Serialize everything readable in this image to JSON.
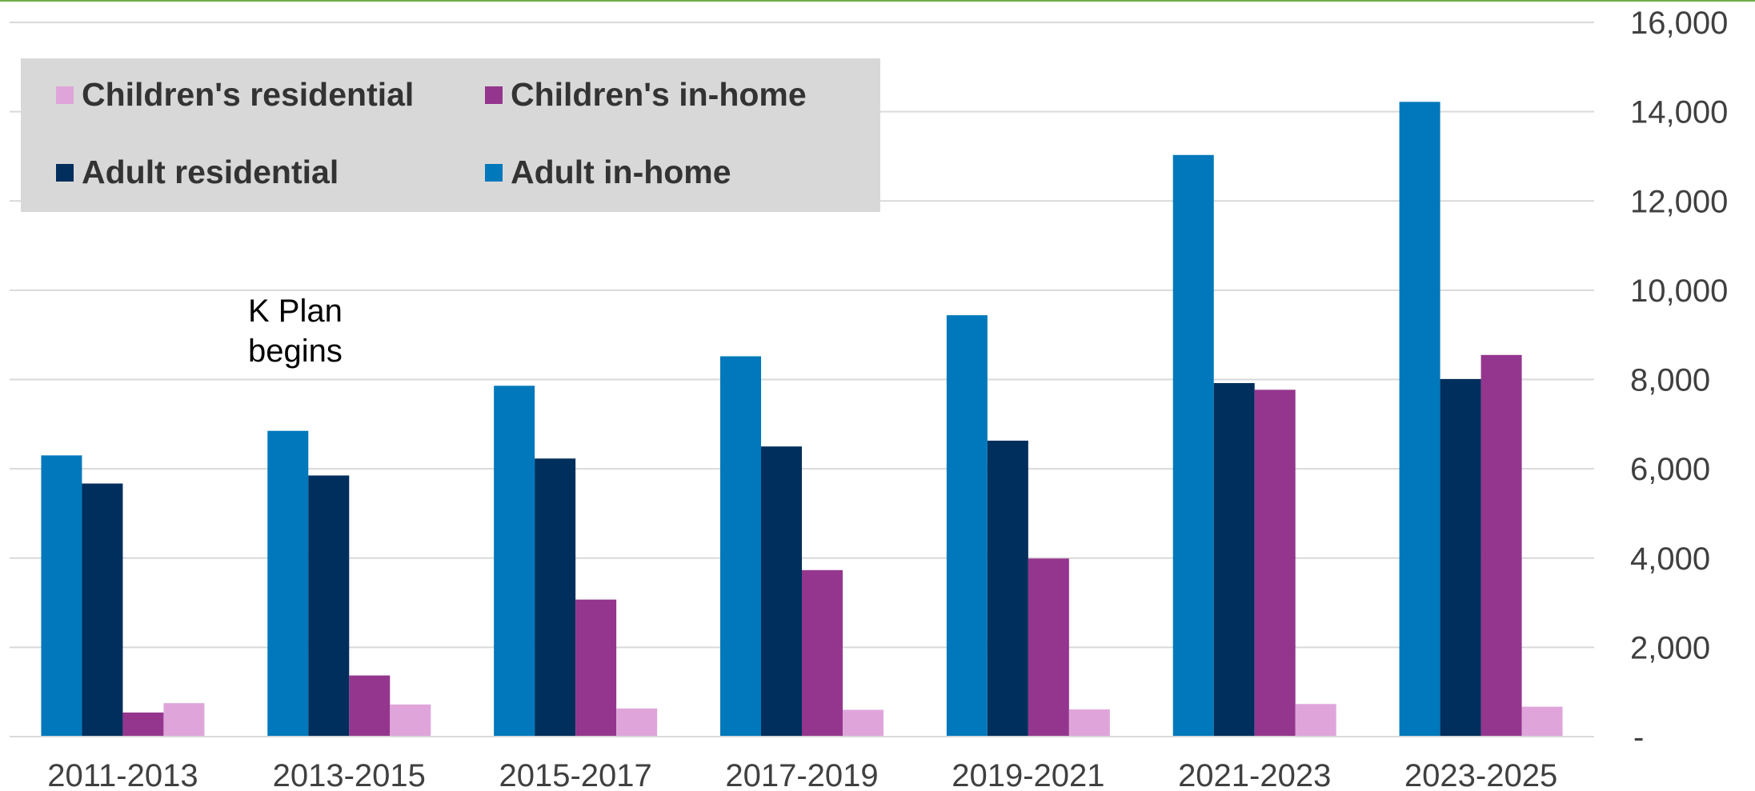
{
  "chart_data": {
    "type": "bar",
    "categories": [
      "2011-2013",
      "2013-2015",
      "2015-2017",
      "2017-2019",
      "2019-2021",
      "2021-2023",
      "2023-2025"
    ],
    "series": [
      {
        "name": "Adult in-home",
        "color": "#0078bb",
        "values": [
          6300,
          6850,
          7860,
          8520,
          9440,
          13030,
          14220
        ]
      },
      {
        "name": "Adult residential",
        "color": "#002e5d",
        "values": [
          5670,
          5850,
          6230,
          6500,
          6630,
          7920,
          8010
        ]
      },
      {
        "name": "Children's in-home",
        "color": "#94368d",
        "values": [
          540,
          1370,
          3070,
          3730,
          3990,
          7770,
          8550
        ]
      },
      {
        "name": "Children's residential",
        "color": "#dfa5da",
        "values": [
          750,
          720,
          630,
          600,
          610,
          730,
          670
        ]
      }
    ],
    "ylim": [
      0,
      16000
    ],
    "y_ticks": [
      {
        "value": 0,
        "label": "-"
      },
      {
        "value": 2000,
        "label": "2,000"
      },
      {
        "value": 4000,
        "label": "4,000"
      },
      {
        "value": 6000,
        "label": "6,000"
      },
      {
        "value": 8000,
        "label": "8,000"
      },
      {
        "value": 10000,
        "label": "10,000"
      },
      {
        "value": 12000,
        "label": "12,000"
      },
      {
        "value": 14000,
        "label": "14,000"
      },
      {
        "value": 16000,
        "label": "16,000"
      }
    ],
    "y_axis_side": "right",
    "grid": true,
    "legend": {
      "placement": "top-left",
      "items": [
        {
          "label": "Children's residential",
          "color": "#dfa5da"
        },
        {
          "label": "Children's in-home",
          "color": "#94368d"
        },
        {
          "label": "Adult residential",
          "color": "#002e5d"
        },
        {
          "label": "Adult in-home",
          "color": "#0078bb"
        }
      ]
    },
    "annotation": {
      "line1": "K Plan",
      "line2": "begins"
    },
    "colors": {
      "gridline": "#d9d9d9",
      "axis_text": "#404040",
      "legend_bg": "#d9d8d8",
      "top_rule": "#70ad47"
    }
  }
}
